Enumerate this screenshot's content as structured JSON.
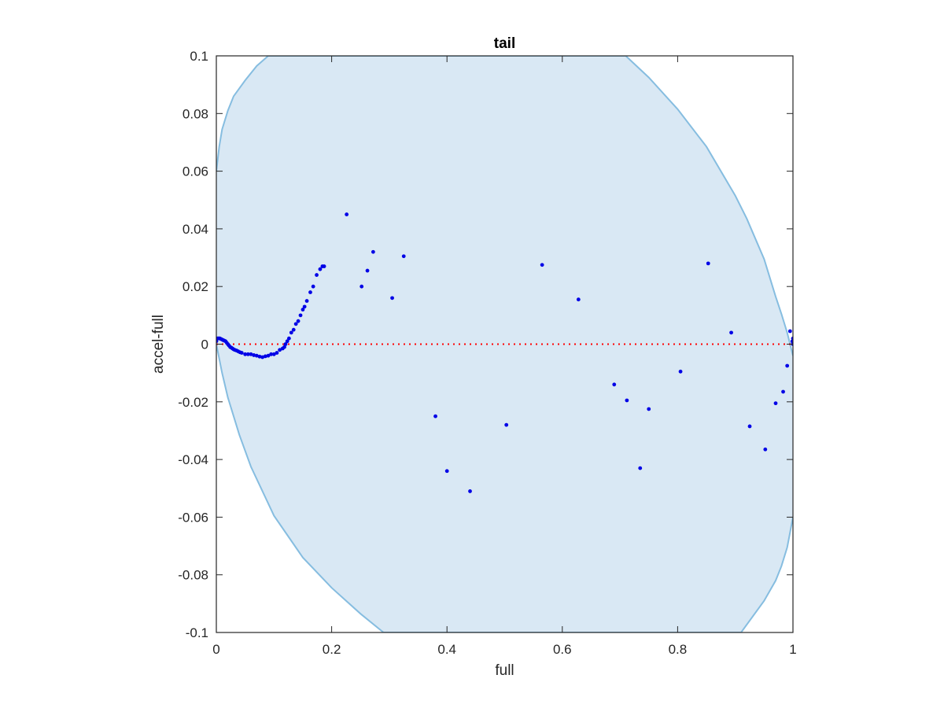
{
  "chart_data": {
    "type": "scatter",
    "title": "tail",
    "xlabel": "full",
    "ylabel": "accel-full",
    "xlim": [
      0,
      1
    ],
    "ylim": [
      -0.1,
      0.1
    ],
    "grid": false,
    "legend": "none",
    "x_ticks": [
      0,
      0.2,
      0.4,
      0.6,
      0.8,
      1
    ],
    "x_tick_labels": [
      "0",
      "0.2",
      "0.4",
      "0.6",
      "0.8",
      "1"
    ],
    "y_ticks": [
      -0.1,
      -0.08,
      -0.06,
      -0.04,
      -0.02,
      0,
      0.02,
      0.04,
      0.06,
      0.08,
      0.1
    ],
    "y_tick_labels": [
      "-0.1",
      "-0.08",
      "-0.06",
      "-0.04",
      "-0.02",
      "0",
      "0.02",
      "0.04",
      "0.06",
      "0.08",
      "0.1"
    ],
    "colors": {
      "points": "#0000e6",
      "region_fill": "#d9e8f4",
      "region_edge": "#86bde0",
      "zero_line": "#ff0000",
      "axis": "#262626"
    },
    "reference_line": {
      "y": 0,
      "style": "dotted"
    },
    "envelope": {
      "description_free": true,
      "upper": {
        "x": [
          0,
          0.005,
          0.01,
          0.02,
          0.03,
          0.05,
          0.07,
          0.09,
          0.1,
          0.2,
          0.3,
          0.4,
          0.5,
          0.6,
          0.7,
          0.71,
          0.75,
          0.8,
          0.85,
          0.9,
          0.92,
          0.95,
          0.97,
          0.98,
          0.99,
          1.0
        ],
        "y": [
          0.06,
          0.0685,
          0.0745,
          0.081,
          0.086,
          0.0915,
          0.0965,
          0.1,
          0.1,
          0.1,
          0.1,
          0.1,
          0.1,
          0.1,
          0.1,
          0.1,
          0.0925,
          0.0815,
          0.0685,
          0.0515,
          0.0435,
          0.0295,
          0.0165,
          0.0105,
          0.004,
          -0.004
        ]
      },
      "lower": {
        "x": [
          0,
          0.01,
          0.02,
          0.04,
          0.06,
          0.1,
          0.15,
          0.2,
          0.25,
          0.29,
          0.3,
          0.4,
          0.5,
          0.6,
          0.7,
          0.8,
          0.9,
          0.91,
          0.95,
          0.97,
          0.98,
          0.99,
          1.0
        ],
        "y": [
          0.0,
          -0.01,
          -0.0185,
          -0.0315,
          -0.0425,
          -0.0595,
          -0.074,
          -0.0845,
          -0.0935,
          -0.1,
          -0.1,
          -0.1,
          -0.1,
          -0.1,
          -0.1,
          -0.1,
          -0.1,
          -0.1,
          -0.089,
          -0.082,
          -0.077,
          -0.0705,
          -0.06
        ]
      }
    },
    "series": [
      {
        "x": [
          0.0,
          0.002,
          0.004,
          0.006,
          0.008,
          0.01,
          0.012,
          0.014,
          0.016,
          0.018,
          0.02,
          0.022,
          0.024,
          0.026,
          0.028,
          0.03,
          0.032,
          0.035,
          0.038,
          0.041,
          0.044,
          0.05,
          0.055,
          0.06,
          0.065,
          0.07,
          0.075,
          0.08,
          0.085,
          0.09,
          0.095,
          0.1,
          0.105,
          0.11,
          0.115,
          0.118,
          0.12,
          0.123,
          0.126,
          0.13,
          0.134,
          0.138,
          0.142,
          0.146,
          0.15,
          0.153,
          0.157,
          0.163,
          0.168,
          0.174,
          0.18,
          0.184,
          0.187,
          0.226,
          0.252,
          0.262,
          0.272,
          0.305,
          0.325,
          0.38,
          0.4,
          0.44,
          0.503,
          0.565,
          0.628,
          0.69,
          0.712,
          0.735,
          0.75,
          0.805,
          0.853,
          0.893,
          0.925,
          0.952,
          0.97,
          0.983,
          0.99,
          0.995,
          1.0,
          1.0,
          1.0,
          0.999
        ],
        "y": [
          0.001,
          0.002,
          0.002,
          0.002,
          0.0018,
          0.0016,
          0.0014,
          0.0012,
          0.001,
          0.0005,
          0.0,
          -0.0005,
          -0.001,
          -0.0012,
          -0.0015,
          -0.0018,
          -0.002,
          -0.0022,
          -0.0025,
          -0.0028,
          -0.003,
          -0.0035,
          -0.0035,
          -0.0035,
          -0.0038,
          -0.004,
          -0.0043,
          -0.0045,
          -0.0042,
          -0.004,
          -0.0035,
          -0.0035,
          -0.003,
          -0.002,
          -0.0015,
          -0.001,
          0.0,
          0.001,
          0.002,
          0.004,
          0.005,
          0.007,
          0.008,
          0.01,
          0.012,
          0.013,
          0.015,
          0.018,
          0.02,
          0.024,
          0.026,
          0.027,
          0.027,
          0.045,
          0.02,
          0.0255,
          0.032,
          0.016,
          0.0305,
          -0.025,
          -0.044,
          -0.051,
          -0.028,
          0.0275,
          0.0155,
          -0.014,
          -0.0195,
          -0.043,
          -0.0225,
          -0.0095,
          0.028,
          0.004,
          -0.0285,
          -0.0365,
          -0.0205,
          -0.0165,
          -0.0075,
          0.0045,
          0.002,
          0.0005,
          0.0,
          0.001
        ]
      }
    ]
  }
}
